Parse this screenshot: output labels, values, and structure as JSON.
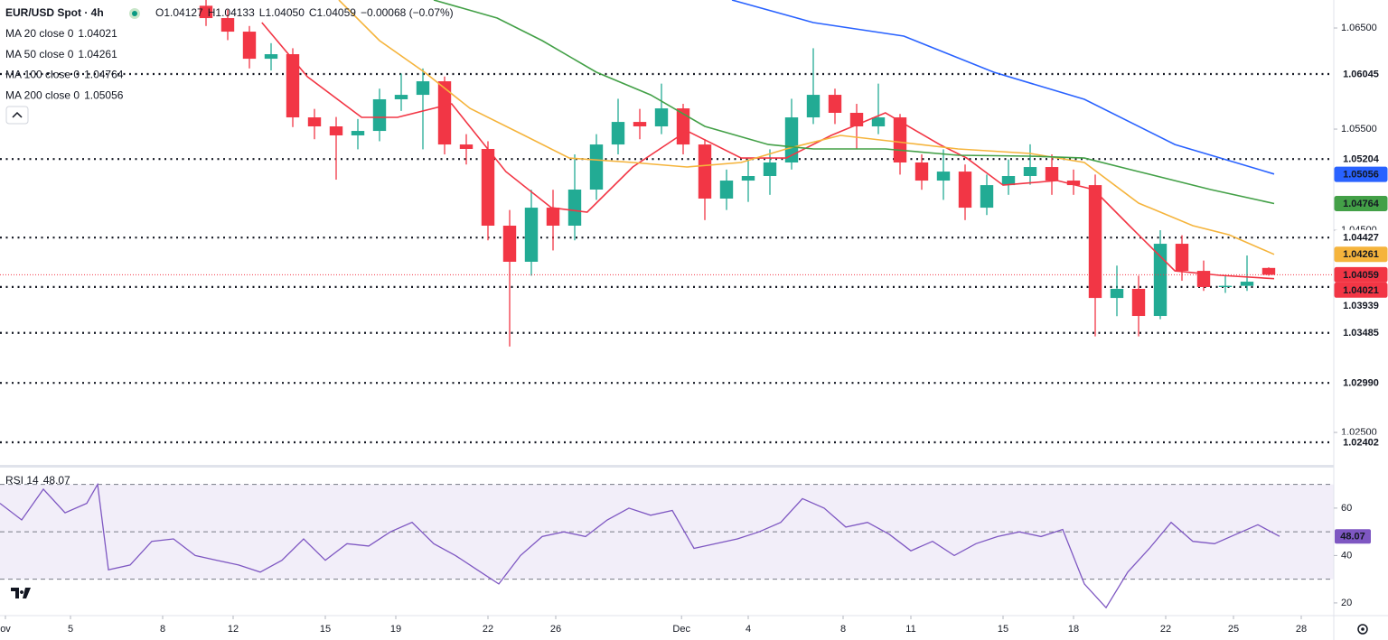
{
  "chart_data": {
    "type": "candlestick",
    "title": "EUR/USD Spot · 4h",
    "quote": [
      "O",
      "1.04127",
      "H",
      "1.04133",
      "L",
      "1.04050",
      "C",
      "1.04059",
      "−0.00068 (−0.07%)"
    ],
    "xlim": [
      0,
      246
    ],
    "xticks": [
      {
        "value": 1,
        "label": "ov"
      },
      {
        "value": 13,
        "label": "5"
      },
      {
        "value": 30,
        "label": "8"
      },
      {
        "value": 43,
        "label": "12"
      },
      {
        "value": 60,
        "label": "15"
      },
      {
        "value": 73,
        "label": "19"
      },
      {
        "value": 90,
        "label": "22"
      },
      {
        "value": 102.5,
        "label": "26"
      },
      {
        "value": 125.7,
        "label": "Dec"
      },
      {
        "value": 138,
        "label": "4"
      },
      {
        "value": 155.5,
        "label": "8"
      },
      {
        "value": 168,
        "label": "11"
      },
      {
        "value": 185,
        "label": "15"
      },
      {
        "value": 198,
        "label": "18"
      },
      {
        "value": 215,
        "label": "22"
      },
      {
        "value": 227.5,
        "label": "25"
      },
      {
        "value": 240,
        "label": "28"
      }
    ],
    "ylim": [
      1.02179,
      1.06777
    ],
    "yticks": [
      {
        "value": 1.065,
        "label": "1.06500"
      },
      {
        "value": 1.055,
        "label": "1.05500"
      },
      {
        "value": 1.045,
        "label": "1.04500"
      },
      {
        "value": 1.025,
        "label": "1.02500"
      }
    ],
    "levels": [
      1.06045,
      1.05204,
      1.04427,
      1.03939,
      1.03485,
      {
        "value": 1.0299,
        "label": "1.02990"
      },
      1.02402
    ],
    "up_color": "#22ab94",
    "down_color": "#f23645",
    "candles": {
      "x": [
        38,
        42,
        46,
        50,
        54,
        58,
        62,
        66,
        70,
        74,
        78,
        82,
        86,
        90,
        94,
        98,
        102,
        106,
        110,
        114,
        118,
        122,
        126,
        130,
        134,
        138,
        142,
        146,
        150,
        154,
        158,
        162,
        166,
        170,
        174,
        178,
        182,
        186,
        190,
        194,
        198,
        202,
        206,
        210,
        214,
        218,
        222,
        226,
        230,
        234
      ],
      "open": [
        1.0672,
        1.06598,
        1.06464,
        1.06196,
        1.06241,
        1.05616,
        1.05527,
        1.05438,
        1.05482,
        1.05795,
        1.05839,
        1.05973,
        1.05348,
        1.05304,
        1.04545,
        1.04188,
        1.04723,
        1.04545,
        1.04902,
        1.05348,
        1.05571,
        1.05527,
        1.05705,
        1.05348,
        1.04813,
        1.04991,
        1.05036,
        1.0517,
        1.05616,
        1.05839,
        1.05661,
        1.05527,
        1.05616,
        1.0517,
        1.04991,
        1.0508,
        1.04723,
        1.04946,
        1.05036,
        1.05125,
        1.04991,
        1.04946,
        1.0383,
        1.0392,
        1.03652,
        1.04366,
        1.04098,
        1.03938,
        1.0395,
        1.04127
      ],
      "high": [
        1.068,
        1.0668,
        1.0652,
        1.0635,
        1.063,
        1.057,
        1.0562,
        1.056,
        1.059,
        1.0605,
        1.061,
        1.0602,
        1.0545,
        1.0538,
        1.047,
        1.049,
        1.049,
        1.0525,
        1.0545,
        1.058,
        1.057,
        1.0595,
        1.0575,
        1.054,
        1.051,
        1.052,
        1.053,
        1.058,
        1.063,
        1.059,
        1.0575,
        1.0595,
        1.0565,
        1.0525,
        1.053,
        1.0515,
        1.0505,
        1.052,
        1.0535,
        1.0525,
        1.051,
        1.0505,
        1.0415,
        1.0405,
        1.045,
        1.0445,
        1.042,
        1.0405,
        1.0425,
        1.04133
      ],
      "low": [
        1.0652,
        1.0638,
        1.061,
        1.0608,
        1.0552,
        1.054,
        1.05,
        1.053,
        1.0538,
        1.0568,
        1.053,
        1.0525,
        1.0515,
        1.044,
        1.0335,
        1.0405,
        1.043,
        1.044,
        1.048,
        1.0525,
        1.054,
        1.0545,
        1.0525,
        1.046,
        1.047,
        1.0478,
        1.0485,
        1.051,
        1.0555,
        1.0555,
        1.053,
        1.0545,
        1.0505,
        1.049,
        1.048,
        1.046,
        1.0465,
        1.0485,
        1.0495,
        1.0485,
        1.0485,
        1.0345,
        1.0365,
        1.0345,
        1.0362,
        1.04,
        1.039,
        1.0388,
        1.039,
        1.0405
      ],
      "close": [
        1.06598,
        1.06464,
        1.06196,
        1.06241,
        1.05616,
        1.05527,
        1.05438,
        1.05482,
        1.05795,
        1.05839,
        1.05973,
        1.05348,
        1.05304,
        1.04545,
        1.04188,
        1.04723,
        1.04545,
        1.04902,
        1.05348,
        1.05571,
        1.05527,
        1.05705,
        1.05348,
        1.04813,
        1.04991,
        1.05036,
        1.0517,
        1.05616,
        1.05839,
        1.05661,
        1.05527,
        1.05616,
        1.0517,
        1.04991,
        1.0508,
        1.04723,
        1.04946,
        1.05036,
        1.05125,
        1.04991,
        1.04946,
        1.0383,
        1.0392,
        1.03652,
        1.04366,
        1.04098,
        1.03938,
        1.0395,
        1.03991,
        1.04059
      ]
    },
    "series": [
      {
        "name": "MA 20 close 0",
        "color": "#f23645",
        "x": [
          48.3,
          56.7,
          66.7,
          73.3,
          83.3,
          93.3,
          101.7,
          108.3,
          116.7,
          126.7,
          136.7,
          145,
          153.3,
          163.3,
          173.3,
          178.3,
          185,
          195,
          201.7,
          208.3,
          216.7,
          225,
          235
        ],
        "values": [
          1.06554,
          1.06018,
          1.05616,
          1.05616,
          1.0575,
          1.0508,
          1.04723,
          1.04679,
          1.05125,
          1.05482,
          1.05214,
          1.05214,
          1.05438,
          1.05661,
          1.05348,
          1.05214,
          1.04946,
          1.04991,
          1.04902,
          1.04545,
          1.04098,
          1.04054,
          1.04021
        ]
      },
      {
        "name": "MA 50 close 0",
        "color": "#f5b43c",
        "x": [
          62.5,
          70,
          78.3,
          86.7,
          96.7,
          105,
          116.7,
          126.7,
          136.7,
          145,
          155,
          166.7,
          176.7,
          190,
          200,
          210,
          220,
          226.7,
          235
        ],
        "values": [
          1.06777,
          1.06375,
          1.06063,
          1.05705,
          1.05438,
          1.05214,
          1.0517,
          1.05125,
          1.0517,
          1.05304,
          1.05438,
          1.05366,
          1.05304,
          1.05259,
          1.0517,
          1.04768,
          1.04545,
          1.04455,
          1.04261
        ]
      },
      {
        "name": "MA 100 close 0",
        "color": "#43a047",
        "x": [
          80,
          91.7,
          100,
          110,
          120,
          130,
          141.7,
          150,
          163.3,
          176.7,
          190,
          200,
          210,
          223.3,
          235
        ],
        "values": [
          1.06777,
          1.06598,
          1.06375,
          1.06063,
          1.05839,
          1.05527,
          1.05348,
          1.05304,
          1.05304,
          1.05241,
          1.05232,
          1.05214,
          1.0508,
          1.04902,
          1.04764
        ]
      },
      {
        "name": "MA 200 close 0",
        "color": "#2962ff",
        "x": [
          135,
          150,
          166.7,
          183.3,
          200,
          216.7,
          235
        ],
        "values": [
          1.06777,
          1.06554,
          1.0642,
          1.06063,
          1.05795,
          1.05348,
          1.05056
        ]
      }
    ],
    "rsi": {
      "name": "RSI 14",
      "color": "#7e57c2",
      "ylim": [
        15.4,
        77.1
      ],
      "yticks": [
        60,
        40,
        20
      ],
      "bands": [
        70,
        50,
        30
      ],
      "x": [
        0,
        4,
        8,
        12,
        16,
        18,
        20,
        24,
        28,
        32,
        36,
        40,
        44,
        48,
        52,
        56,
        60,
        64,
        68,
        72,
        76,
        80,
        84,
        88,
        92,
        96,
        100,
        104,
        108,
        112,
        116,
        120,
        124,
        128,
        132,
        136,
        140,
        144,
        148,
        152,
        156,
        160,
        164,
        168,
        172,
        176,
        180,
        184,
        188,
        192,
        196,
        200,
        204,
        208,
        212,
        216,
        220,
        224,
        228,
        232,
        236
      ],
      "values": [
        62,
        55,
        68,
        58,
        62,
        70,
        34,
        36,
        46,
        47,
        40,
        38,
        36,
        33,
        38,
        47,
        38,
        45,
        44,
        50,
        54,
        45,
        40,
        34,
        28,
        40,
        48,
        50,
        48,
        55,
        60,
        57,
        59,
        43,
        45,
        47,
        50,
        54,
        64,
        60,
        52,
        54,
        49,
        42,
        46,
        40,
        45,
        48,
        50,
        48,
        51,
        28,
        18,
        33,
        43,
        54,
        46,
        45,
        49,
        53,
        48.07
      ]
    }
  }
}
